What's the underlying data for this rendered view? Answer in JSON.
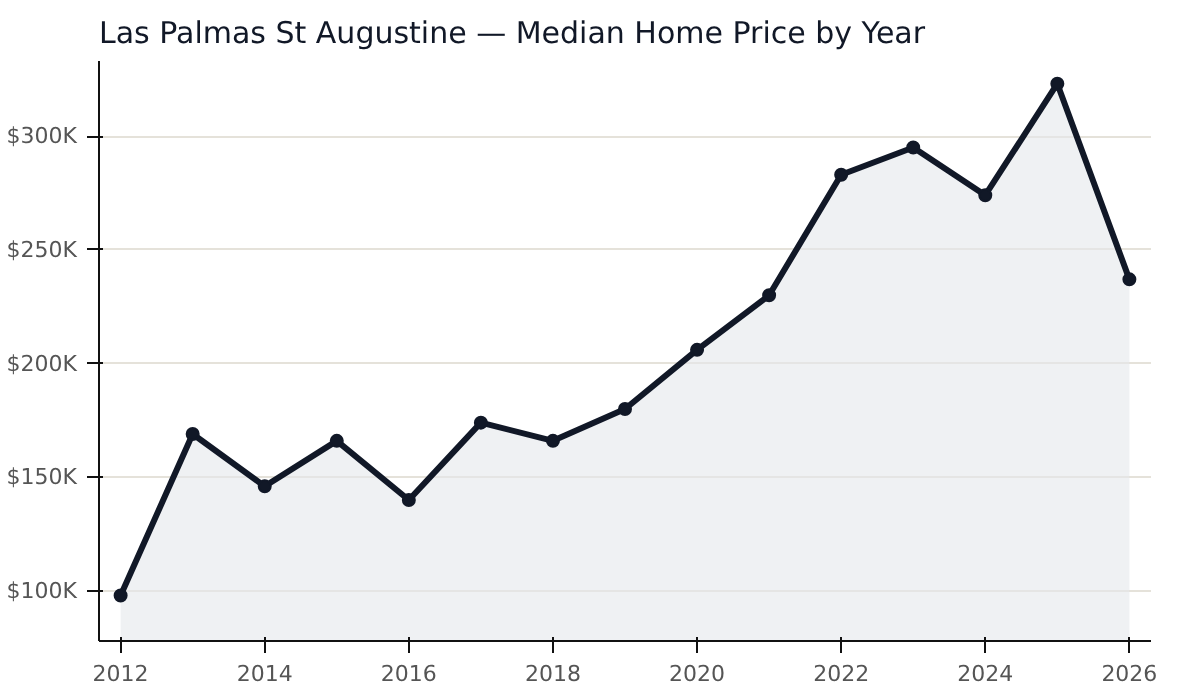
{
  "chart_data": {
    "type": "area",
    "title": "Las Palmas St Augustine — Median Home Price by Year",
    "x": [
      2012,
      2013,
      2014,
      2015,
      2016,
      2017,
      2018,
      2019,
      2020,
      2021,
      2022,
      2023,
      2024,
      2025,
      2026
    ],
    "series": [
      {
        "color": "#111827",
        "values": [
          98,
          169,
          146,
          166,
          140,
          174,
          166,
          180,
          206,
          230,
          283,
          295,
          274,
          323,
          237
        ]
      }
    ],
    "xlim": [
      2011.7,
      2026.3
    ],
    "ylim": [
      78,
      333
    ],
    "xticks": [
      2012,
      2014,
      2016,
      2018,
      2020,
      2022,
      2024,
      2026
    ],
    "yticks": [
      {
        "value": 100,
        "label": "$100K"
      },
      {
        "value": 150,
        "label": "$150K"
      },
      {
        "value": 200,
        "label": "$200K"
      },
      {
        "value": 250,
        "label": "$250K"
      },
      {
        "value": 300,
        "label": "$300K"
      }
    ],
    "grid": "y",
    "marker": "circle",
    "line_style": "solid"
  }
}
